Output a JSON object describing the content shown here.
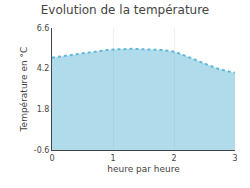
{
  "chart_data": {
    "type": "area",
    "title": "Evolution de la température",
    "xlabel": "heure par heure",
    "ylabel": "Température en °C",
    "x": [
      0,
      0.1,
      0.2,
      0.3,
      0.4,
      0.5,
      0.6,
      0.7,
      0.8,
      0.9,
      1.0,
      1.1,
      1.2,
      1.3,
      1.4,
      1.5,
      1.6,
      1.7,
      1.8,
      1.9,
      2.0,
      2.1,
      2.2,
      2.3,
      2.4,
      2.5,
      2.6,
      2.7,
      2.8,
      2.9,
      3.0
    ],
    "values": [
      4.85,
      4.9,
      4.95,
      5.0,
      5.07,
      5.13,
      5.18,
      5.22,
      5.26,
      5.3,
      5.33,
      5.35,
      5.36,
      5.37,
      5.36,
      5.35,
      5.34,
      5.33,
      5.3,
      5.26,
      5.2,
      5.08,
      4.95,
      4.8,
      4.65,
      4.5,
      4.35,
      4.22,
      4.12,
      4.05,
      3.95
    ],
    "color": "#60b8d8",
    "line_style": "dotted",
    "xlim": [
      0,
      3.0
    ],
    "ylim": [
      -0.6,
      6.6
    ],
    "xticks": [
      0,
      1,
      2,
      3
    ],
    "yticks": [
      -0.6,
      1.8,
      4.2,
      6.6
    ],
    "grid": "x"
  }
}
